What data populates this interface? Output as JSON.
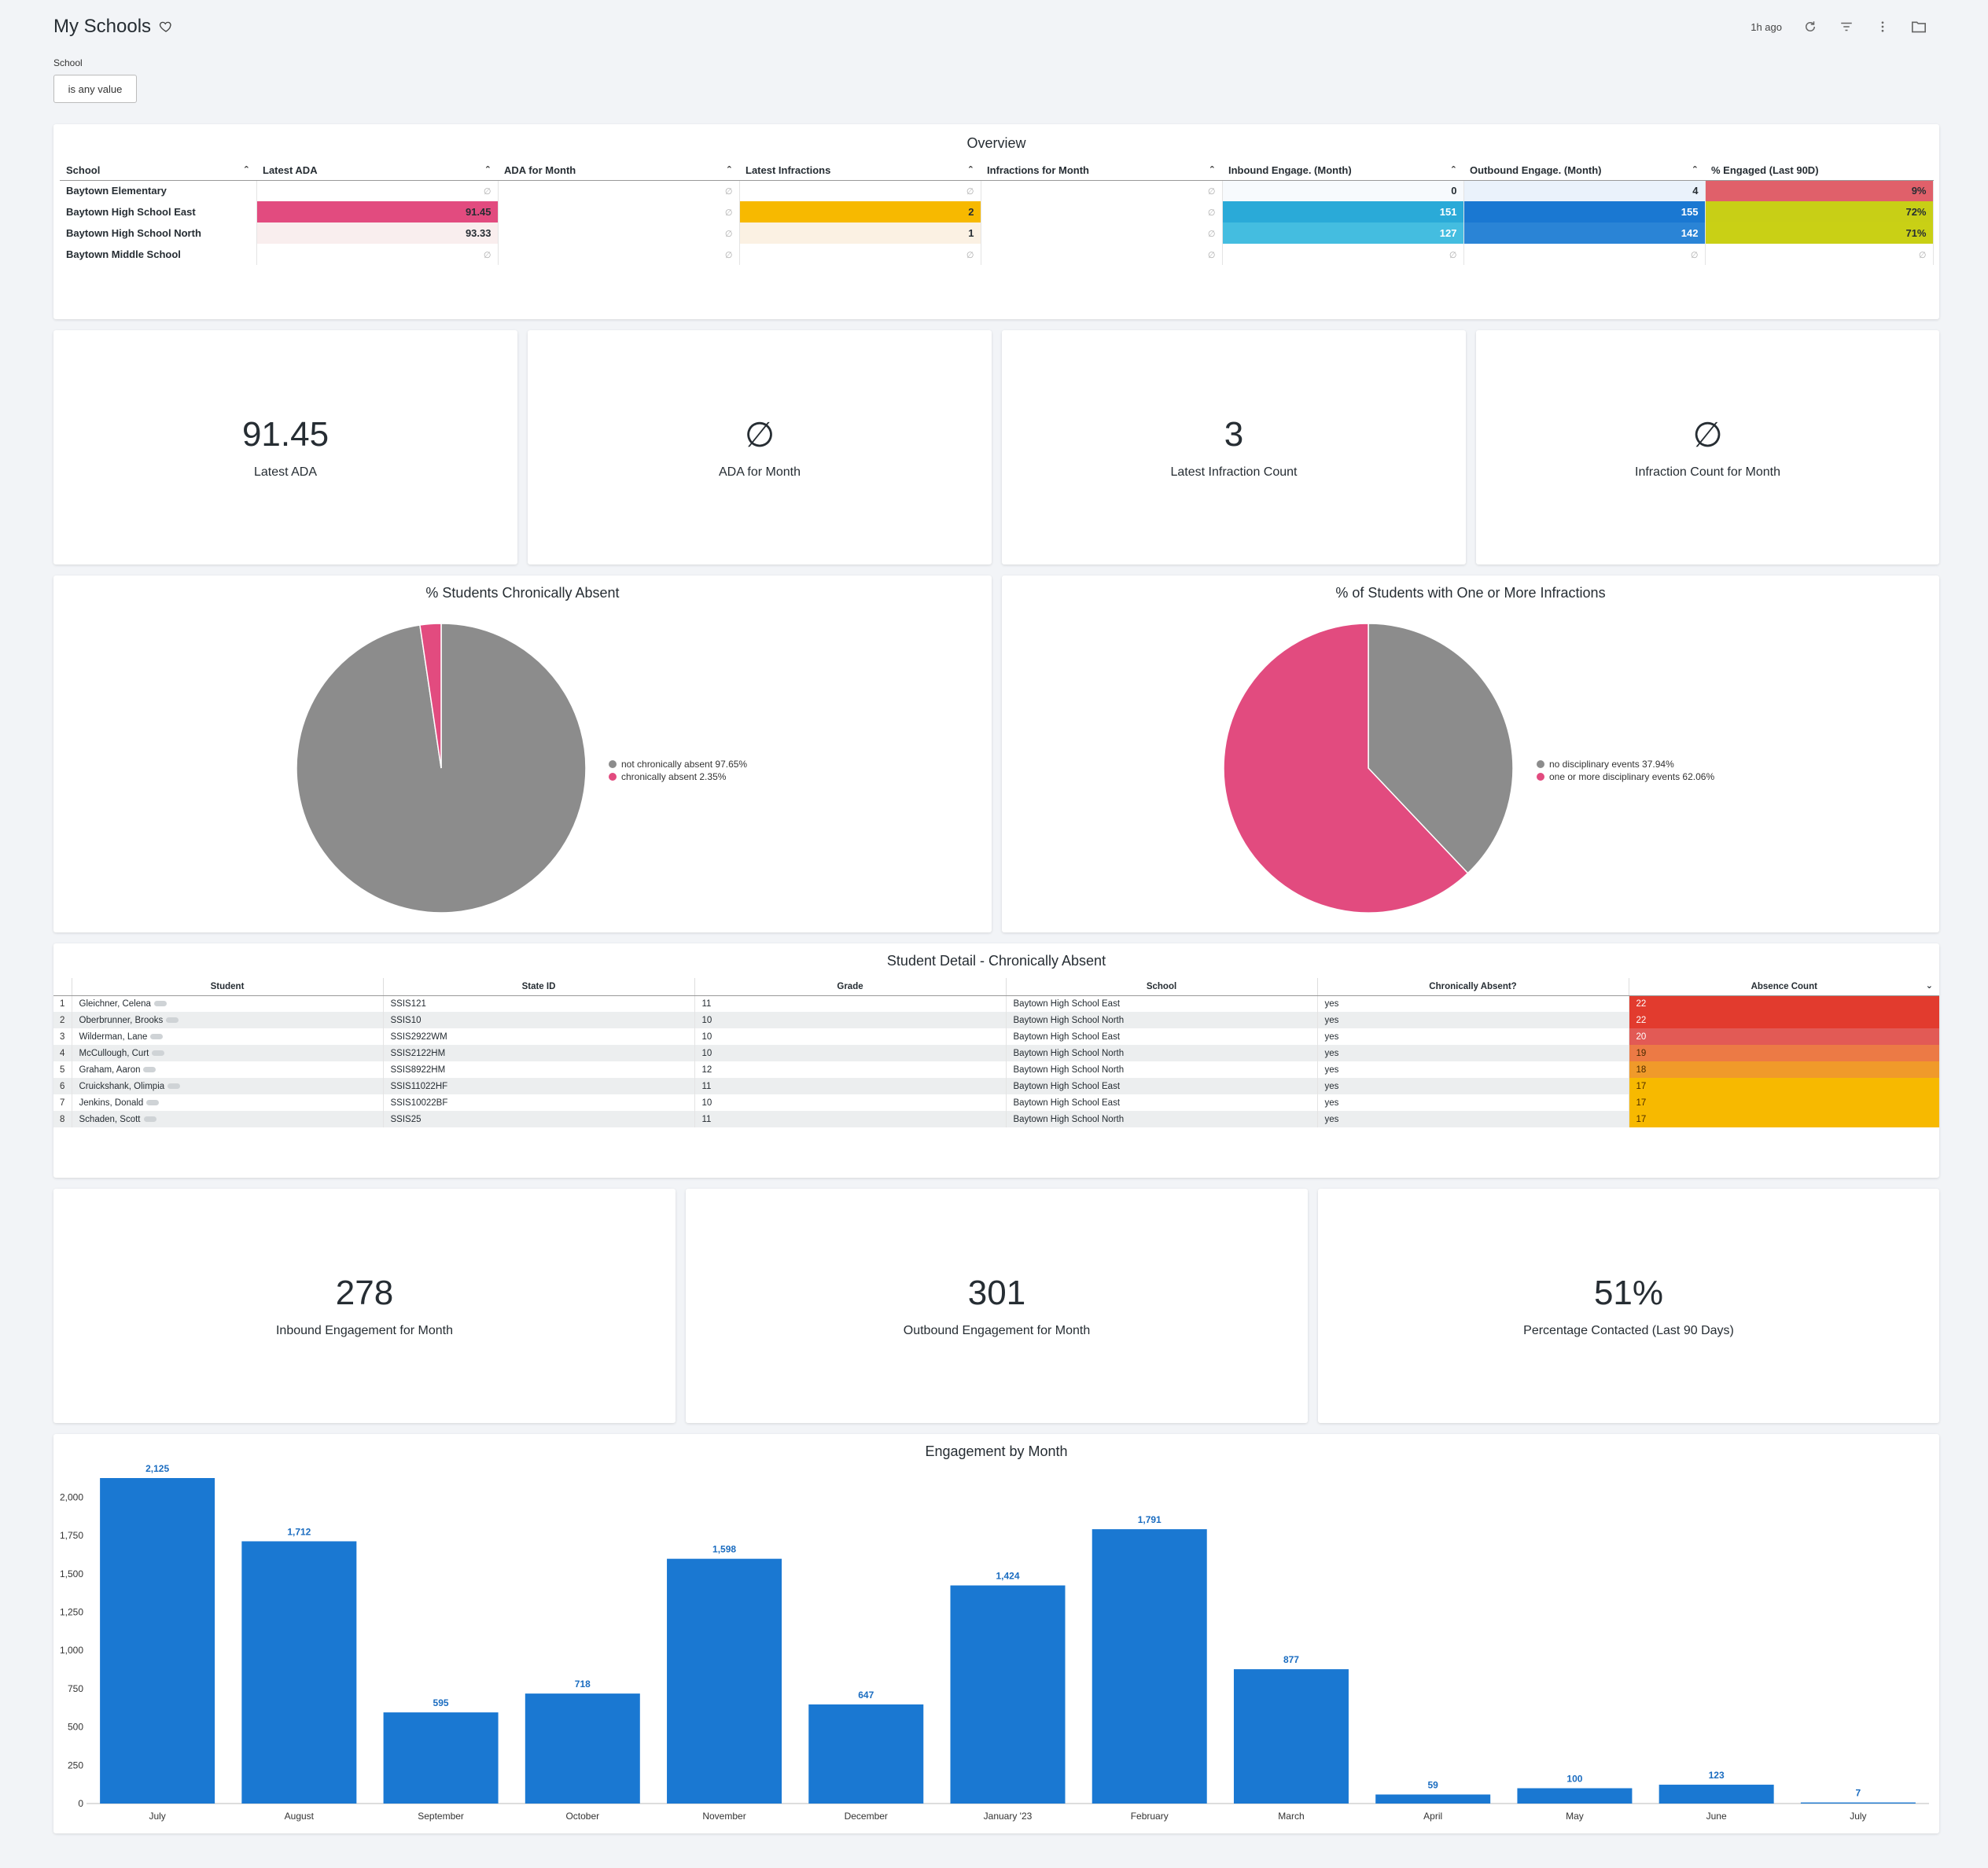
{
  "header": {
    "title": "My Schools",
    "updated": "1h ago"
  },
  "filter": {
    "label": "School",
    "value": "is any value"
  },
  "overview": {
    "title": "Overview",
    "columns": [
      "School",
      "Latest ADA",
      "ADA for Month",
      "Latest Infractions",
      "Infractions for Month",
      "Inbound Engage. (Month)",
      "Outbound Engage. (Month)",
      "% Engaged (Last 90D)"
    ],
    "null_symbol": "∅",
    "rows": [
      {
        "school": "Baytown Elementary",
        "latest_ada": "",
        "ada_month": "",
        "latest_infr": "",
        "infr_month": "",
        "inbound": "0",
        "outbound": "4",
        "engaged": "9%"
      },
      {
        "school": "Baytown High School East",
        "latest_ada": "91.45",
        "ada_month": "",
        "latest_infr": "2",
        "infr_month": "",
        "inbound": "151",
        "outbound": "155",
        "engaged": "72%"
      },
      {
        "school": "Baytown High School North",
        "latest_ada": "93.33",
        "ada_month": "",
        "latest_infr": "1",
        "infr_month": "",
        "inbound": "127",
        "outbound": "142",
        "engaged": "71%"
      },
      {
        "school": "Baytown Middle School",
        "latest_ada": "",
        "ada_month": "",
        "latest_infr": "",
        "infr_month": "",
        "inbound": "",
        "outbound": "",
        "engaged": ""
      }
    ]
  },
  "kpis_top": [
    {
      "value": "91.45",
      "label": "Latest ADA"
    },
    {
      "value": "∅",
      "label": "ADA for Month"
    },
    {
      "value": "3",
      "label": "Latest Infraction Count"
    },
    {
      "value": "∅",
      "label": "Infraction Count for Month"
    }
  ],
  "pie_absent": {
    "title": "% Students Chronically Absent",
    "slices": [
      {
        "label": "not chronically absent 97.65%",
        "value": 97.65,
        "color": "#8c8c8c"
      },
      {
        "label": "chronically absent 2.35%",
        "value": 2.35,
        "color": "#e24b7f"
      }
    ]
  },
  "pie_infractions": {
    "title": "% of Students with One or More Infractions",
    "slices": [
      {
        "label": "no disciplinary events 37.94%",
        "value": 37.94,
        "color": "#8c8c8c"
      },
      {
        "label": "one or more disciplinary events 62.06%",
        "value": 62.06,
        "color": "#e24b7f"
      }
    ]
  },
  "detail": {
    "title": "Student Detail - Chronically Absent",
    "columns": [
      "Student",
      "State ID",
      "Grade",
      "School",
      "Chronically Absent?",
      "Absence Count"
    ],
    "rows": [
      {
        "n": "1",
        "student": "Gleichner, Celena",
        "state_id": "SSIS121",
        "grade": "11",
        "school": "Baytown High School East",
        "absent": "yes",
        "count": "22",
        "color": "#e23b2e"
      },
      {
        "n": "2",
        "student": "Oberbrunner, Brooks",
        "state_id": "SSIS10",
        "grade": "10",
        "school": "Baytown High School North",
        "absent": "yes",
        "count": "22",
        "color": "#e23b2e"
      },
      {
        "n": "3",
        "student": "Wilderman, Lane",
        "state_id": "SSIS2922WM",
        "grade": "10",
        "school": "Baytown High School East",
        "absent": "yes",
        "count": "20",
        "color": "#e25a55"
      },
      {
        "n": "4",
        "student": "McCullough, Curt",
        "state_id": "SSIS2122HM",
        "grade": "10",
        "school": "Baytown High School North",
        "absent": "yes",
        "count": "19",
        "color": "#ec7a45"
      },
      {
        "n": "5",
        "student": "Graham, Aaron",
        "state_id": "SSIS8922HM",
        "grade": "12",
        "school": "Baytown High School North",
        "absent": "yes",
        "count": "18",
        "color": "#f09a2a"
      },
      {
        "n": "6",
        "student": "Cruickshank, Olimpia",
        "state_id": "SSIS11022HF",
        "grade": "11",
        "school": "Baytown High School East",
        "absent": "yes",
        "count": "17",
        "color": "#f7b900"
      },
      {
        "n": "7",
        "student": "Jenkins, Donald",
        "state_id": "SSIS10022BF",
        "grade": "10",
        "school": "Baytown High School East",
        "absent": "yes",
        "count": "17",
        "color": "#f7b900"
      },
      {
        "n": "8",
        "student": "Schaden, Scott",
        "state_id": "SSIS25",
        "grade": "11",
        "school": "Baytown High School North",
        "absent": "yes",
        "count": "17",
        "color": "#f7b900"
      }
    ]
  },
  "kpis_engagement": [
    {
      "value": "278",
      "label": "Inbound Engagement for Month"
    },
    {
      "value": "301",
      "label": "Outbound Engagement for Month"
    },
    {
      "value": "51%",
      "label": "Percentage Contacted (Last 90 Days)"
    }
  ],
  "chart_data": {
    "type": "bar",
    "title": "Engagement by Month",
    "categories": [
      "July",
      "August",
      "September",
      "October",
      "November",
      "December",
      "January '23",
      "February",
      "March",
      "April",
      "May",
      "June",
      "July"
    ],
    "values": [
      2125,
      1712,
      595,
      718,
      1598,
      647,
      1424,
      1791,
      877,
      59,
      100,
      123,
      7
    ],
    "value_labels": [
      "2,125",
      "1,712",
      "595",
      "718",
      "1,598",
      "647",
      "1,424",
      "1,791",
      "877",
      "59",
      "100",
      "123",
      "7"
    ],
    "yticks": [
      0,
      250,
      500,
      750,
      1000,
      1250,
      1500,
      1750,
      2000
    ],
    "ytick_labels": [
      "0",
      "250",
      "500",
      "750",
      "1,000",
      "1,250",
      "1,500",
      "1,750",
      "2,000"
    ],
    "ylim": [
      0,
      2125
    ],
    "color": "#1a78d2",
    "grid": false,
    "xlabel": "",
    "ylabel": ""
  }
}
